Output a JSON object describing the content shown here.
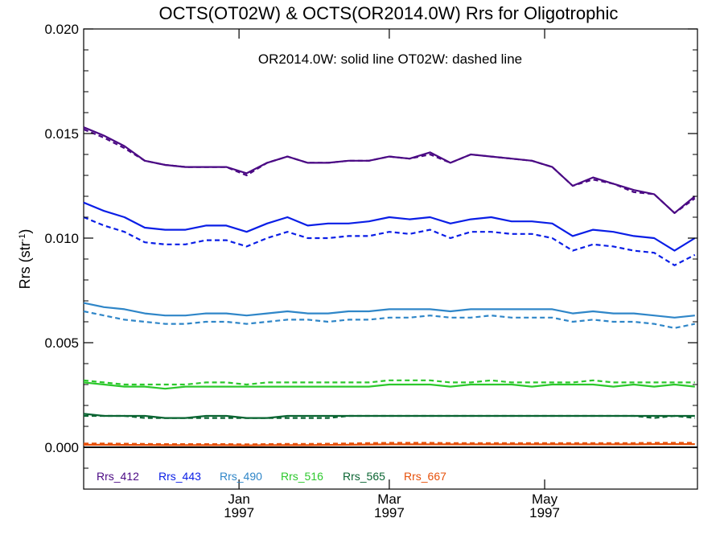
{
  "chart_data": {
    "type": "line",
    "title": "OCTS(OT02W) & OCTS(OR2014.0W)  Rrs for Oligotrophic",
    "subtitle": "OR2014.0W: solid line   OT02W: dashed line",
    "ylabel_main": "Rrs (str",
    "ylabel_sup": "-1",
    "ylabel_close": ")",
    "xlabel": "",
    "ylim": [
      -0.002,
      0.02
    ],
    "yticks": [
      {
        "value": 0.0,
        "label": "0.000"
      },
      {
        "value": 0.005,
        "label": "0.005"
      },
      {
        "value": 0.01,
        "label": "0.010"
      },
      {
        "value": 0.015,
        "label": "0.015"
      },
      {
        "value": 0.02,
        "label": "0.020"
      }
    ],
    "xlim": [
      "1996-11-01",
      "1997-06-30"
    ],
    "xticks": [
      {
        "value": "1997-01-01",
        "month": "Jan",
        "year": "1997"
      },
      {
        "value": "1997-03-01",
        "month": "Mar",
        "year": "1997"
      },
      {
        "value": "1997-05-01",
        "month": "May",
        "year": "1997"
      }
    ],
    "x": [
      "1996-11-01",
      "1996-11-09",
      "1996-11-17",
      "1996-11-25",
      "1996-12-03",
      "1996-12-11",
      "1996-12-19",
      "1996-12-27",
      "1997-01-04",
      "1997-01-12",
      "1997-01-20",
      "1997-01-28",
      "1997-02-05",
      "1997-02-13",
      "1997-02-21",
      "1997-03-01",
      "1997-03-09",
      "1997-03-17",
      "1997-03-25",
      "1997-04-02",
      "1997-04-10",
      "1997-04-18",
      "1997-04-26",
      "1997-05-04",
      "1997-05-12",
      "1997-05-20",
      "1997-05-28",
      "1997-06-05",
      "1997-06-13",
      "1997-06-21",
      "1997-06-29"
    ],
    "series": [
      {
        "name": "Rrs_412",
        "color": "#4b0a84",
        "solid": [
          0.0153,
          0.0149,
          0.0144,
          0.0137,
          0.0135,
          0.0134,
          0.0134,
          0.0134,
          0.0131,
          0.0136,
          0.0139,
          0.0136,
          0.0136,
          0.0137,
          0.0137,
          0.0139,
          0.0138,
          0.0141,
          0.0136,
          0.014,
          0.0139,
          0.0138,
          0.0137,
          0.0134,
          0.0125,
          0.0129,
          0.0126,
          0.0123,
          0.0121,
          0.0112,
          0.012
        ],
        "dashed": [
          0.0152,
          0.0148,
          0.0143,
          0.0137,
          0.0135,
          0.0134,
          0.0134,
          0.0134,
          0.013,
          0.0136,
          0.0139,
          0.0136,
          0.0136,
          0.0137,
          0.0137,
          0.0139,
          0.0138,
          0.014,
          0.0136,
          0.014,
          0.0139,
          0.0138,
          0.0137,
          0.0134,
          0.0125,
          0.0128,
          0.0126,
          0.0122,
          0.0121,
          0.0112,
          0.0119
        ]
      },
      {
        "name": "Rrs_443",
        "color": "#0a1ee6",
        "solid": [
          0.0117,
          0.0113,
          0.011,
          0.0105,
          0.0104,
          0.0104,
          0.0106,
          0.0106,
          0.0103,
          0.0107,
          0.011,
          0.0106,
          0.0107,
          0.0107,
          0.0108,
          0.011,
          0.0109,
          0.011,
          0.0107,
          0.0109,
          0.011,
          0.0108,
          0.0108,
          0.0107,
          0.0101,
          0.0104,
          0.0103,
          0.0101,
          0.01,
          0.0094,
          0.01
        ],
        "dashed": [
          0.011,
          0.0106,
          0.0103,
          0.0098,
          0.0097,
          0.0097,
          0.0099,
          0.0099,
          0.0096,
          0.01,
          0.0103,
          0.01,
          0.01,
          0.0101,
          0.0101,
          0.0103,
          0.0102,
          0.0104,
          0.01,
          0.0103,
          0.0103,
          0.0102,
          0.0102,
          0.01,
          0.0094,
          0.0097,
          0.0096,
          0.0094,
          0.0093,
          0.0087,
          0.0092
        ]
      },
      {
        "name": "Rrs_490",
        "color": "#2f86c8",
        "solid": [
          0.0069,
          0.0067,
          0.0066,
          0.0064,
          0.0063,
          0.0063,
          0.0064,
          0.0064,
          0.0063,
          0.0064,
          0.0065,
          0.0064,
          0.0064,
          0.0065,
          0.0065,
          0.0066,
          0.0066,
          0.0066,
          0.0065,
          0.0066,
          0.0066,
          0.0066,
          0.0066,
          0.0066,
          0.0064,
          0.0065,
          0.0064,
          0.0064,
          0.0063,
          0.0062,
          0.0063
        ],
        "dashed": [
          0.0065,
          0.0063,
          0.0061,
          0.006,
          0.0059,
          0.0059,
          0.006,
          0.006,
          0.0059,
          0.006,
          0.0061,
          0.0061,
          0.006,
          0.0061,
          0.0061,
          0.0062,
          0.0062,
          0.0063,
          0.0062,
          0.0062,
          0.0063,
          0.0062,
          0.0062,
          0.0062,
          0.006,
          0.0061,
          0.006,
          0.006,
          0.0059,
          0.0057,
          0.0059
        ]
      },
      {
        "name": "Rrs_516",
        "color": "#2cc82c",
        "solid": [
          0.0031,
          0.003,
          0.0029,
          0.0029,
          0.0028,
          0.0029,
          0.0029,
          0.0029,
          0.0029,
          0.0029,
          0.0029,
          0.0029,
          0.0029,
          0.0029,
          0.0029,
          0.003,
          0.003,
          0.003,
          0.0029,
          0.003,
          0.003,
          0.003,
          0.0029,
          0.003,
          0.003,
          0.003,
          0.0029,
          0.003,
          0.0029,
          0.003,
          0.0029
        ],
        "dashed": [
          0.0032,
          0.0031,
          0.003,
          0.003,
          0.003,
          0.003,
          0.0031,
          0.0031,
          0.003,
          0.0031,
          0.0031,
          0.0031,
          0.0031,
          0.0031,
          0.0031,
          0.0032,
          0.0032,
          0.0032,
          0.0031,
          0.0031,
          0.0032,
          0.0031,
          0.0031,
          0.0031,
          0.0031,
          0.0032,
          0.0031,
          0.0031,
          0.0031,
          0.0031,
          0.0031
        ]
      },
      {
        "name": "Rrs_565",
        "color": "#0a6432",
        "solid": [
          0.0016,
          0.0015,
          0.0015,
          0.0015,
          0.0014,
          0.0014,
          0.0015,
          0.0015,
          0.0014,
          0.0014,
          0.0015,
          0.0015,
          0.0015,
          0.0015,
          0.0015,
          0.0015,
          0.0015,
          0.0015,
          0.0015,
          0.0015,
          0.0015,
          0.0015,
          0.0015,
          0.0015,
          0.0015,
          0.0015,
          0.0015,
          0.0015,
          0.0015,
          0.0015,
          0.0015
        ],
        "dashed": [
          0.0015,
          0.0015,
          0.0015,
          0.0014,
          0.0014,
          0.0014,
          0.0014,
          0.0014,
          0.0014,
          0.0014,
          0.0014,
          0.0014,
          0.0014,
          0.0015,
          0.0015,
          0.0015,
          0.0015,
          0.0015,
          0.0015,
          0.0015,
          0.0015,
          0.0015,
          0.0015,
          0.0015,
          0.0015,
          0.0015,
          0.0015,
          0.0015,
          0.0014,
          0.0015,
          0.0014
        ]
      },
      {
        "name": "Rrs_667",
        "color": "#e6500a",
        "solid": [
          0.00012,
          0.00012,
          0.00011,
          0.00011,
          0.0001,
          0.0001,
          0.0001,
          0.0001,
          9e-05,
          0.0001,
          0.0001,
          0.0001,
          0.00011,
          0.00012,
          0.00013,
          0.00014,
          0.00014,
          0.00014,
          0.00014,
          0.00014,
          0.00014,
          0.00014,
          0.00014,
          0.00014,
          0.00014,
          0.00014,
          0.00014,
          0.00014,
          0.00015,
          0.00015,
          0.00015
        ],
        "dashed": [
          0.00018,
          0.00018,
          0.00017,
          0.00016,
          0.00015,
          0.00015,
          0.00015,
          0.00015,
          0.00014,
          0.00015,
          0.00016,
          0.00016,
          0.00017,
          0.00018,
          0.0002,
          0.00021,
          0.00021,
          0.00021,
          0.0002,
          0.0002,
          0.0002,
          0.0002,
          0.0002,
          0.0002,
          0.0002,
          0.0002,
          0.0002,
          0.0002,
          0.00021,
          0.00021,
          0.00021
        ]
      }
    ],
    "zero_line": 0.0,
    "legend_placement": "bottom-left",
    "grid": false
  }
}
